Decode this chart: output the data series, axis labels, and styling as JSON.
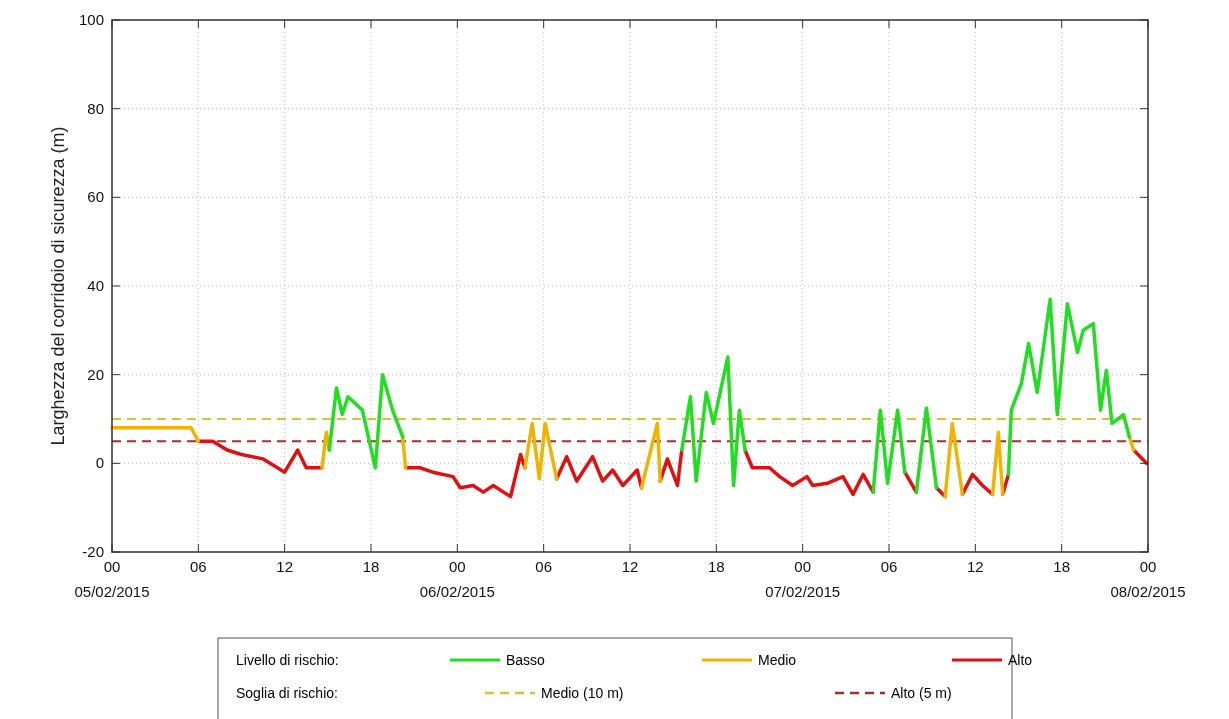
{
  "chart_data": {
    "type": "line",
    "ylabel": "Larghezza del corridoio di sicurezza (m)",
    "legend_title": "Livello di rischio:",
    "annotations": [
      "Soglia di rischio:"
    ],
    "xlim": [
      "2015-02-05T00:00",
      "2015-02-08T00:00"
    ],
    "xticks": [
      {
        "value": "2015-02-05T00:00",
        "label": "00\n05/02/2015"
      },
      {
        "value": "2015-02-05T06:00",
        "label": "06"
      },
      {
        "value": "2015-02-05T12:00",
        "label": "12"
      },
      {
        "value": "2015-02-05T18:00",
        "label": "18"
      },
      {
        "value": "2015-02-06T00:00",
        "label": "00\n06/02/2015"
      },
      {
        "value": "2015-02-06T06:00",
        "label": "06"
      },
      {
        "value": "2015-02-06T12:00",
        "label": "12"
      },
      {
        "value": "2015-02-06T18:00",
        "label": "18"
      },
      {
        "value": "2015-02-07T00:00",
        "label": "00\n07/02/2015"
      },
      {
        "value": "2015-02-07T06:00",
        "label": "06"
      },
      {
        "value": "2015-02-07T12:00",
        "label": "12"
      },
      {
        "value": "2015-02-07T18:00",
        "label": "18"
      },
      {
        "value": "2015-02-08T00:00",
        "label": "00\n08/02/2015"
      }
    ],
    "ylim": [
      -20,
      100
    ],
    "yticks": [
      -20,
      0,
      20,
      40,
      60,
      80,
      100
    ],
    "grid": true,
    "legend": "bottom",
    "line_style": "solid",
    "marker": "none",
    "series": [
      {
        "name": "Alto",
        "color": "#e01010",
        "x": [
          "2015-02-05T06:00",
          "2015-02-05T07:00",
          "2015-02-05T08:00",
          "2015-02-05T09:00",
          "2015-02-05T10:30",
          "2015-02-05T11:30",
          "2015-02-05T12:00",
          "2015-02-05T12:54",
          "2015-02-05T13:30",
          "2015-02-05T14:36",
          null,
          "2015-02-05T20:24",
          "2015-02-05T21:24",
          "2015-02-05T22:18",
          "2015-02-05T23:42",
          "2015-02-06T00:12",
          "2015-02-06T01:06",
          "2015-02-06T01:48",
          "2015-02-06T02:30",
          "2015-02-06T03:42",
          "2015-02-06T04:24",
          "2015-02-06T04:42",
          null,
          "2015-02-06T06:54",
          "2015-02-06T07:36",
          "2015-02-06T08:18",
          "2015-02-06T09:24",
          "2015-02-06T10:06",
          "2015-02-06T10:48",
          "2015-02-06T11:30",
          "2015-02-06T12:30",
          "2015-02-06T12:48",
          null,
          "2015-02-06T14:06",
          "2015-02-06T14:36",
          "2015-02-06T15:18",
          "2015-02-06T15:36",
          null,
          "2015-02-06T20:00",
          "2015-02-06T20:30",
          "2015-02-06T21:42",
          "2015-02-06T22:24",
          "2015-02-06T23:18",
          "2015-02-07T00:18",
          "2015-02-07T00:42",
          "2015-02-07T01:42",
          "2015-02-07T02:48",
          "2015-02-07T03:30",
          "2015-02-07T04:12",
          "2015-02-07T04:54",
          null,
          "2015-02-07T07:06",
          "2015-02-07T07:54",
          null,
          "2015-02-07T09:18",
          "2015-02-07T09:54",
          null,
          "2015-02-07T11:06",
          "2015-02-07T11:48",
          "2015-02-07T12:30",
          "2015-02-07T13:12",
          null,
          "2015-02-07T13:54",
          "2015-02-07T14:18",
          null,
          "2015-02-07T23:00",
          "2015-02-07T23:54"
        ],
        "values": [
          5,
          5,
          3,
          2,
          1,
          -1,
          -2,
          3,
          -1,
          -1,
          null,
          -1,
          -1,
          -2,
          -3,
          -5.5,
          -5,
          -6.5,
          -5,
          -7.5,
          2,
          -1,
          null,
          -3.5,
          1.5,
          -4,
          1.5,
          -4,
          -1.5,
          -5,
          -1.5,
          -5.5,
          null,
          -4,
          1,
          -5,
          3,
          null,
          3,
          -1,
          -1,
          -3,
          -5,
          -3,
          -5,
          -4.5,
          -3,
          -7,
          -2.5,
          -6.5,
          null,
          -2,
          -6.5,
          null,
          -5.5,
          -7.5,
          null,
          -7,
          -2.5,
          -5,
          -7,
          null,
          -7,
          -2.5,
          null,
          3,
          0
        ]
      },
      {
        "name": "Medio",
        "color": "#f0b400",
        "x": [
          "2015-02-05T00:00",
          "2015-02-05T05:30",
          "2015-02-05T06:00",
          null,
          "2015-02-05T14:36",
          "2015-02-05T14:54",
          "2015-02-05T15:06",
          null,
          "2015-02-05T20:12",
          "2015-02-05T20:24",
          null,
          "2015-02-06T04:42",
          "2015-02-06T05:12",
          "2015-02-06T05:42",
          "2015-02-06T06:06",
          "2015-02-06T06:54",
          null,
          "2015-02-06T12:48",
          "2015-02-06T13:54",
          "2015-02-06T14:06",
          null,
          "2015-02-07T09:54",
          "2015-02-07T10:24",
          "2015-02-07T11:06",
          null,
          "2015-02-07T13:12",
          "2015-02-07T13:36",
          "2015-02-07T13:54",
          null,
          "2015-02-07T22:42",
          "2015-02-07T23:00"
        ],
        "values": [
          8,
          8,
          5,
          null,
          -1,
          7,
          3,
          null,
          6,
          -1,
          null,
          -1,
          9,
          -3.5,
          9,
          -3.5,
          null,
          -5.5,
          9,
          -4,
          null,
          -7.5,
          9,
          -7,
          null,
          -7,
          7,
          -7,
          null,
          6,
          3
        ]
      },
      {
        "name": "Basso",
        "color": "#22dd22",
        "x": [
          "2015-02-05T15:06",
          "2015-02-05T15:36",
          "2015-02-05T16:00",
          "2015-02-05T16:24",
          "2015-02-05T17:24",
          "2015-02-05T18:18",
          "2015-02-05T18:48",
          "2015-02-05T19:30",
          "2015-02-05T20:12",
          null,
          "2015-02-06T15:36",
          "2015-02-06T16:12",
          "2015-02-06T16:36",
          "2015-02-06T17:18",
          "2015-02-06T17:48",
          "2015-02-06T18:48",
          "2015-02-06T19:12",
          "2015-02-06T19:36",
          "2015-02-06T20:00",
          null,
          "2015-02-07T04:54",
          "2015-02-07T05:24",
          "2015-02-07T05:54",
          "2015-02-07T06:36",
          "2015-02-07T07:06",
          null,
          "2015-02-07T07:54",
          "2015-02-07T08:36",
          "2015-02-07T09:18",
          null,
          "2015-02-07T14:18",
          "2015-02-07T14:30",
          "2015-02-07T15:12",
          "2015-02-07T15:42",
          "2015-02-07T16:18",
          "2015-02-07T17:12",
          "2015-02-07T17:42",
          "2015-02-07T18:24",
          "2015-02-07T19:06",
          "2015-02-07T19:30",
          "2015-02-07T20:12",
          "2015-02-07T20:42",
          "2015-02-07T21:06",
          "2015-02-07T21:30",
          "2015-02-07T22:18",
          "2015-02-07T22:42"
        ],
        "values": [
          3,
          17,
          11,
          15,
          12,
          -1,
          20,
          12,
          6,
          null,
          3,
          15,
          -4,
          16,
          9,
          24,
          -5,
          12,
          3,
          null,
          -6.5,
          12,
          -4.5,
          12,
          -2,
          null,
          -6.5,
          12.5,
          -5.5,
          null,
          -2.5,
          12,
          18,
          27,
          16,
          37,
          11,
          36,
          25,
          30,
          31.5,
          12,
          21,
          9,
          11,
          6
        ]
      }
    ],
    "ref_lines": [
      {
        "axis": "y",
        "value": 10,
        "label": "Medio (10 m)",
        "color": "#d8c040",
        "line_style": "dashed"
      },
      {
        "axis": "y",
        "value": 5,
        "label": "Alto (5 m)",
        "color": "#a03030",
        "line_style": "dashed"
      }
    ]
  }
}
